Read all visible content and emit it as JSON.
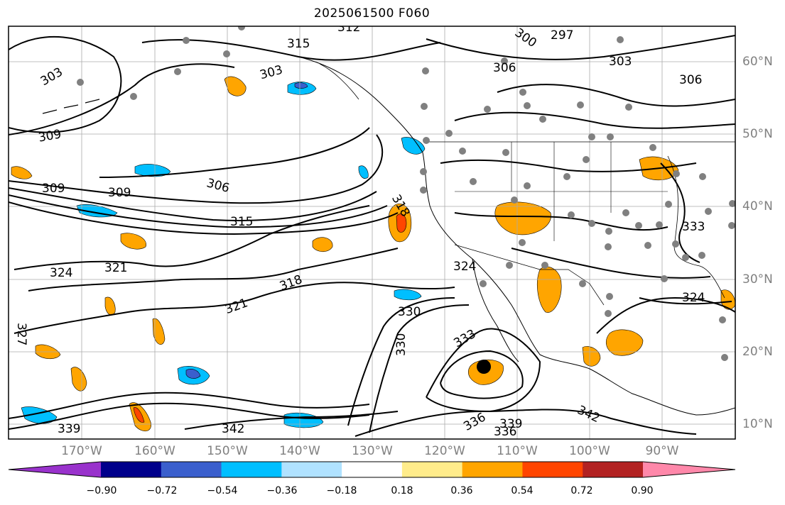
{
  "title": "2025061500 F060",
  "latitude_labels": [
    "60°N",
    "50°N",
    "40°N",
    "30°N",
    "20°N",
    "10°N"
  ],
  "longitude_labels": [
    "170°W",
    "160°W",
    "150°W",
    "140°W",
    "130°W",
    "120°W",
    "110°W",
    "100°W",
    "90°W"
  ],
  "contour_labels": [
    "297",
    "300",
    "303",
    "306",
    "309",
    "312",
    "315",
    "318",
    "321",
    "324",
    "327",
    "330",
    "333",
    "336",
    "339",
    "342"
  ],
  "colorbar": {
    "ticks": [
      "−0.90",
      "−0.72",
      "−0.54",
      "−0.36",
      "−0.18",
      "0.18",
      "0.36",
      "0.54",
      "0.72",
      "0.90"
    ],
    "colors": [
      "#9932cc",
      "#00008b",
      "#3a5fcd",
      "#00bfff",
      "#b0e2ff",
      "#ffffff",
      "#ffec8b",
      "#ffa500",
      "#ff4500",
      "#b22222",
      "#ff88aa"
    ]
  },
  "map": {
    "extent_lon": [
      -180,
      -82
    ],
    "extent_lat": [
      8,
      65
    ],
    "storm_center": {
      "lon": -114,
      "lat": 18
    }
  }
}
